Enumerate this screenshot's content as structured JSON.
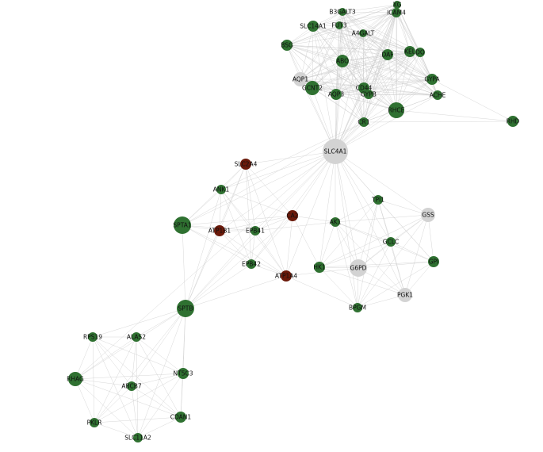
{
  "palette": {
    "green": "#2f7131",
    "gray": "#d3d3d3",
    "red": "#6b1a0a",
    "edge": "#c9c9c9"
  },
  "nodes": [
    {
      "id": "XG",
      "label": "XG",
      "group": "green"
    },
    {
      "id": "B3GALT3",
      "label": "B3GALT3",
      "group": "green"
    },
    {
      "id": "ICAM4",
      "label": "ICAM4",
      "group": "green"
    },
    {
      "id": "SLC14A1",
      "label": "SLC14A1",
      "group": "green"
    },
    {
      "id": "FUT3",
      "label": "FUT3",
      "group": "green"
    },
    {
      "id": "A4GALT",
      "label": "A4GALT",
      "group": "green"
    },
    {
      "id": "BSG",
      "label": "BSG",
      "group": "green"
    },
    {
      "id": "ABO",
      "label": "ABO",
      "group": "green"
    },
    {
      "id": "DAF",
      "label": "DAF",
      "group": "green"
    },
    {
      "id": "KEL",
      "label": "KEL",
      "group": "green"
    },
    {
      "id": "DO",
      "label": "DO",
      "group": "green"
    },
    {
      "id": "AQP1",
      "label": "AQP1",
      "group": "gray"
    },
    {
      "id": "GCNT2",
      "label": "GCNT2",
      "group": "green"
    },
    {
      "id": "CD44",
      "label": "CD44",
      "group": "green"
    },
    {
      "id": "GYPB",
      "label": "GYPB",
      "group": "green"
    },
    {
      "id": "AQP3",
      "label": "AQP3",
      "group": "green"
    },
    {
      "id": "GYPA",
      "label": "GYPA",
      "group": "green"
    },
    {
      "id": "ACHE",
      "label": "ACHE",
      "group": "green"
    },
    {
      "id": "RHCE",
      "label": "RHCE",
      "group": "green"
    },
    {
      "id": "CR1",
      "label": "CR1",
      "group": "green"
    },
    {
      "id": "RHD",
      "label": "RHD",
      "group": "green"
    },
    {
      "id": "SLC4A1",
      "label": "SLC4A1",
      "group": "gray"
    },
    {
      "id": "SLC2A4",
      "label": "SLC2A4",
      "group": "red"
    },
    {
      "id": "ANK1",
      "label": "ANK1",
      "group": "green"
    },
    {
      "id": "SPTA1",
      "label": "SPTA1",
      "group": "green"
    },
    {
      "id": "ATP1B1",
      "label": "ATP1B1",
      "group": "red"
    },
    {
      "id": "EPB41",
      "label": "EPB41",
      "group": "green"
    },
    {
      "id": "CA2",
      "label": "CA2",
      "group": "red"
    },
    {
      "id": "EPB42",
      "label": "EPB42",
      "group": "green"
    },
    {
      "id": "ATP1A4",
      "label": "ATP1A4",
      "group": "red"
    },
    {
      "id": "TPI1",
      "label": "TPI1",
      "group": "green"
    },
    {
      "id": "GSS",
      "label": "GSS",
      "group": "gray"
    },
    {
      "id": "AK1",
      "label": "AK1",
      "group": "green"
    },
    {
      "id": "GCLC",
      "label": "GCLC",
      "group": "green"
    },
    {
      "id": "GPI",
      "label": "GPI",
      "group": "green"
    },
    {
      "id": "HK1",
      "label": "HK1",
      "group": "green"
    },
    {
      "id": "G6PD",
      "label": "G6PD",
      "group": "gray"
    },
    {
      "id": "PGK1",
      "label": "PGK1",
      "group": "gray"
    },
    {
      "id": "BPGM",
      "label": "BPGM",
      "group": "green"
    },
    {
      "id": "SPTB",
      "label": "SPTB",
      "group": "green"
    },
    {
      "id": "RPS19",
      "label": "RPS19",
      "group": "green"
    },
    {
      "id": "ALAS2",
      "label": "ALAS2",
      "group": "green"
    },
    {
      "id": "NT5C3",
      "label": "NT5C3",
      "group": "green"
    },
    {
      "id": "RHAG",
      "label": "RHAG",
      "group": "green"
    },
    {
      "id": "ABCB7",
      "label": "ABCB7",
      "group": "green"
    },
    {
      "id": "CDAN1",
      "label": "CDAN1",
      "group": "green"
    },
    {
      "id": "PKLR",
      "label": "PKLR",
      "group": "green"
    },
    {
      "id": "SLC11A2",
      "label": "SLC11A2",
      "group": "green"
    }
  ],
  "clusters": [
    [
      "XG",
      "B3GALT3",
      "ICAM4",
      "SLC14A1",
      "FUT3",
      "A4GALT",
      "BSG",
      "ABO",
      "DAF",
      "KEL",
      "DO",
      "AQP1",
      "GCNT2",
      "CD44",
      "GYPB",
      "AQP3",
      "GYPA",
      "ACHE",
      "RHCE",
      "CR1"
    ],
    [
      "TPI1",
      "GSS",
      "AK1",
      "GCLC",
      "GPI",
      "HK1",
      "G6PD",
      "PGK1",
      "BPGM"
    ],
    [
      "RPS19",
      "ALAS2",
      "NT5C3",
      "RHAG",
      "ABCB7",
      "CDAN1",
      "PKLR",
      "SLC11A2"
    ],
    [
      "ANK1",
      "SPTA1",
      "ATP1B1",
      "EPB41",
      "CA2",
      "EPB42",
      "ATP1A4",
      "SLC2A4",
      "SPTB"
    ]
  ],
  "edges": [
    [
      "SLC4A1",
      "XG"
    ],
    [
      "SLC4A1",
      "B3GALT3"
    ],
    [
      "SLC4A1",
      "ICAM4"
    ],
    [
      "SLC4A1",
      "SLC14A1"
    ],
    [
      "SLC4A1",
      "FUT3"
    ],
    [
      "SLC4A1",
      "A4GALT"
    ],
    [
      "SLC4A1",
      "BSG"
    ],
    [
      "SLC4A1",
      "ABO"
    ],
    [
      "SLC4A1",
      "DAF"
    ],
    [
      "SLC4A1",
      "KEL"
    ],
    [
      "SLC4A1",
      "DO"
    ],
    [
      "SLC4A1",
      "AQP1"
    ],
    [
      "SLC4A1",
      "GCNT2"
    ],
    [
      "SLC4A1",
      "CD44"
    ],
    [
      "SLC4A1",
      "GYPB"
    ],
    [
      "SLC4A1",
      "AQP3"
    ],
    [
      "SLC4A1",
      "GYPA"
    ],
    [
      "SLC4A1",
      "ACHE"
    ],
    [
      "SLC4A1",
      "RHCE"
    ],
    [
      "SLC4A1",
      "CR1"
    ],
    [
      "RHCE",
      "RHD"
    ],
    [
      "GYPA",
      "RHD"
    ],
    [
      "CR1",
      "RHD"
    ],
    [
      "SLC4A1",
      "SLC2A4"
    ],
    [
      "SLC4A1",
      "ANK1"
    ],
    [
      "SLC4A1",
      "SPTA1"
    ],
    [
      "SLC4A1",
      "ATP1B1"
    ],
    [
      "SLC4A1",
      "EPB41"
    ],
    [
      "SLC4A1",
      "CA2"
    ],
    [
      "SLC4A1",
      "EPB42"
    ],
    [
      "SLC4A1",
      "ATP1A4"
    ],
    [
      "SLC4A1",
      "SPTB"
    ],
    [
      "SLC4A1",
      "TPI1"
    ],
    [
      "SLC4A1",
      "GSS"
    ],
    [
      "SLC4A1",
      "AK1"
    ],
    [
      "SLC4A1",
      "GCLC"
    ],
    [
      "SLC4A1",
      "GPI"
    ],
    [
      "SLC4A1",
      "HK1"
    ],
    [
      "SLC4A1",
      "G6PD"
    ],
    [
      "SLC4A1",
      "PGK1"
    ],
    [
      "SLC4A1",
      "BPGM"
    ],
    [
      "SPTB",
      "RPS19"
    ],
    [
      "SPTB",
      "ALAS2"
    ],
    [
      "SPTB",
      "NT5C3"
    ],
    [
      "SPTB",
      "RHAG"
    ],
    [
      "SPTB",
      "ABCB7"
    ],
    [
      "SPTB",
      "CDAN1"
    ],
    [
      "SPTB",
      "PKLR"
    ],
    [
      "SPTB",
      "SLC11A2"
    ],
    [
      "RHAG",
      "CR1"
    ],
    [
      "CA2",
      "HK1"
    ],
    [
      "CA2",
      "AK1"
    ],
    [
      "ATP1A4",
      "G6PD"
    ],
    [
      "EPB41",
      "AK1"
    ],
    [
      "SPTA1",
      "CR1"
    ],
    [
      "ANK1",
      "CR1"
    ],
    [
      "ATP1A4",
      "BPGM"
    ],
    [
      "SPTB",
      "ATP1A4"
    ],
    [
      "SPTB",
      "ANK1"
    ]
  ]
}
